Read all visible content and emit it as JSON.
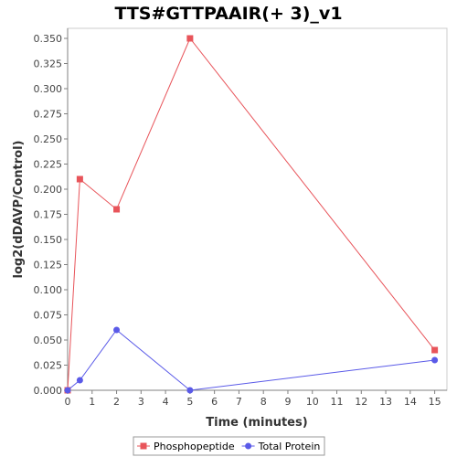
{
  "chart_data": {
    "type": "line",
    "title": "TTS#GTTPAAIR(+ 3)_v1",
    "xlabel": "Time (minutes)",
    "ylabel": "log2(dDAVP/Control)",
    "xlim": [
      0,
      15.5
    ],
    "ylim": [
      0,
      0.36
    ],
    "x_ticks": [
      0,
      1,
      2,
      3,
      4,
      5,
      6,
      7,
      8,
      9,
      10,
      11,
      12,
      13,
      14,
      15
    ],
    "x_tick_labels": [
      "0",
      "1",
      "2",
      "3",
      "4",
      "5",
      "6",
      "7",
      "8",
      "9",
      "10",
      "11",
      "12",
      "13",
      "14",
      "15"
    ],
    "y_ticks": [
      0,
      0.025,
      0.05,
      0.075,
      0.1,
      0.125,
      0.15,
      0.175,
      0.2,
      0.225,
      0.25,
      0.275,
      0.3,
      0.325,
      0.35
    ],
    "y_tick_labels": [
      "0.000",
      "0.025",
      "0.050",
      "0.075",
      "0.100",
      "0.125",
      "0.150",
      "0.175",
      "0.200",
      "0.225",
      "0.250",
      "0.275",
      "0.300",
      "0.325",
      "0.350"
    ],
    "grid": false,
    "legend_position": "bottom",
    "series": [
      {
        "name": "Phosphopeptide",
        "color": "#e8545a",
        "marker": "square",
        "x": [
          0,
          0.5,
          2,
          5,
          15
        ],
        "y": [
          0,
          0.21,
          0.18,
          0.35,
          0.04
        ]
      },
      {
        "name": "Total Protein",
        "color": "#5a5ae8",
        "marker": "circle",
        "x": [
          0,
          0.5,
          2,
          5,
          15
        ],
        "y": [
          0,
          0.01,
          0.06,
          0,
          0.03
        ]
      }
    ]
  }
}
